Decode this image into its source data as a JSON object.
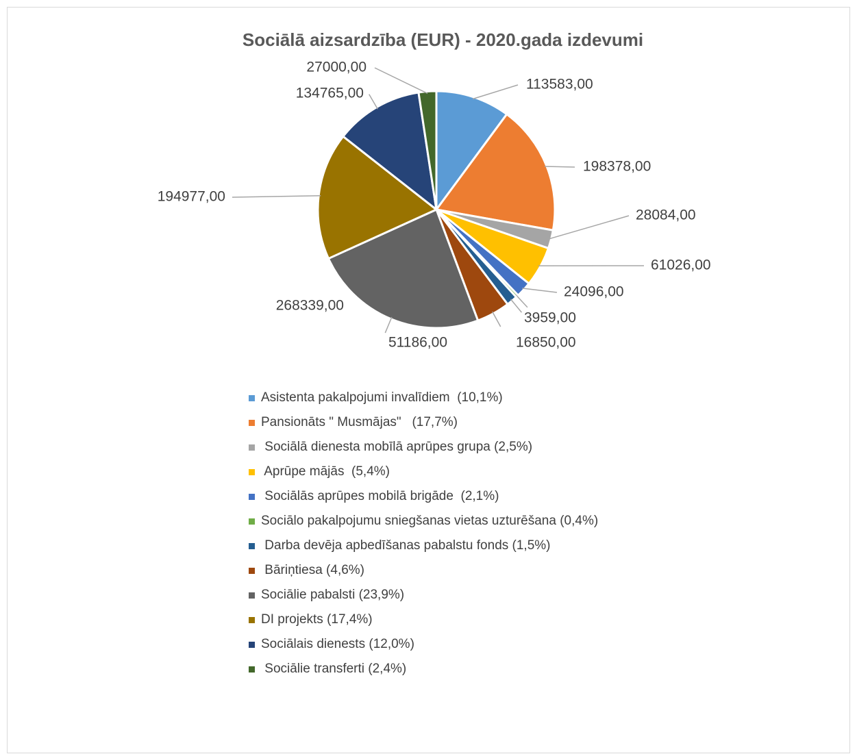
{
  "chart_data": {
    "type": "pie",
    "title": "Sociālā aizsardzība (EUR) - 2020.gada izdevumi",
    "legend_position": "bottom",
    "series": [
      {
        "name": "Asistenta pakalpojumi invalīdiem  (10,1%)",
        "value": 113583,
        "label": "113583,00",
        "color": "#5b9bd5"
      },
      {
        "name": "Pansionāts \" Musmājas\"   (17,7%)",
        "value": 198378,
        "label": "198378,00",
        "color": "#ed7d31"
      },
      {
        "name": " Sociālā dienesta mobīlā aprūpes grupa (2,5%)",
        "value": 28084,
        "label": "28084,00",
        "color": "#a5a5a5"
      },
      {
        "name": " Aprūpe mājās  (5,4%)",
        "value": 61026,
        "label": "61026,00",
        "color": "#ffc000"
      },
      {
        "name": " Sociālās aprūpes mobilā brigāde  (2,1%)",
        "value": 24096,
        "label": "24096,00",
        "color": "#4472c4"
      },
      {
        "name": "Sociālo pakalpojumu sniegšanas vietas uzturēšana (0,4%)",
        "value": 3959,
        "label": "3959,00",
        "color": "#70ad47"
      },
      {
        "name": " Darba devēja apbedīšanas pabalstu fonds (1,5%)",
        "value": 16850,
        "label": "16850,00",
        "color": "#255e91"
      },
      {
        "name": " Bāriņtiesa (4,6%)",
        "value": 51186,
        "label": "51186,00",
        "color": "#9e480e"
      },
      {
        "name": "Sociālie pabalsti (23,9%)",
        "value": 268339,
        "label": "268339,00",
        "color": "#636363"
      },
      {
        "name": "DI projekts (17,4%)",
        "value": 194977,
        "label": "194977,00",
        "color": "#997300"
      },
      {
        "name": "Sociālais dienests (12,0%)",
        "value": 134765,
        "label": "134765,00",
        "color": "#264478"
      },
      {
        "name": " Sociālie transferti (2,4%)",
        "value": 27000,
        "label": "27000,00",
        "color": "#43682b"
      }
    ]
  }
}
